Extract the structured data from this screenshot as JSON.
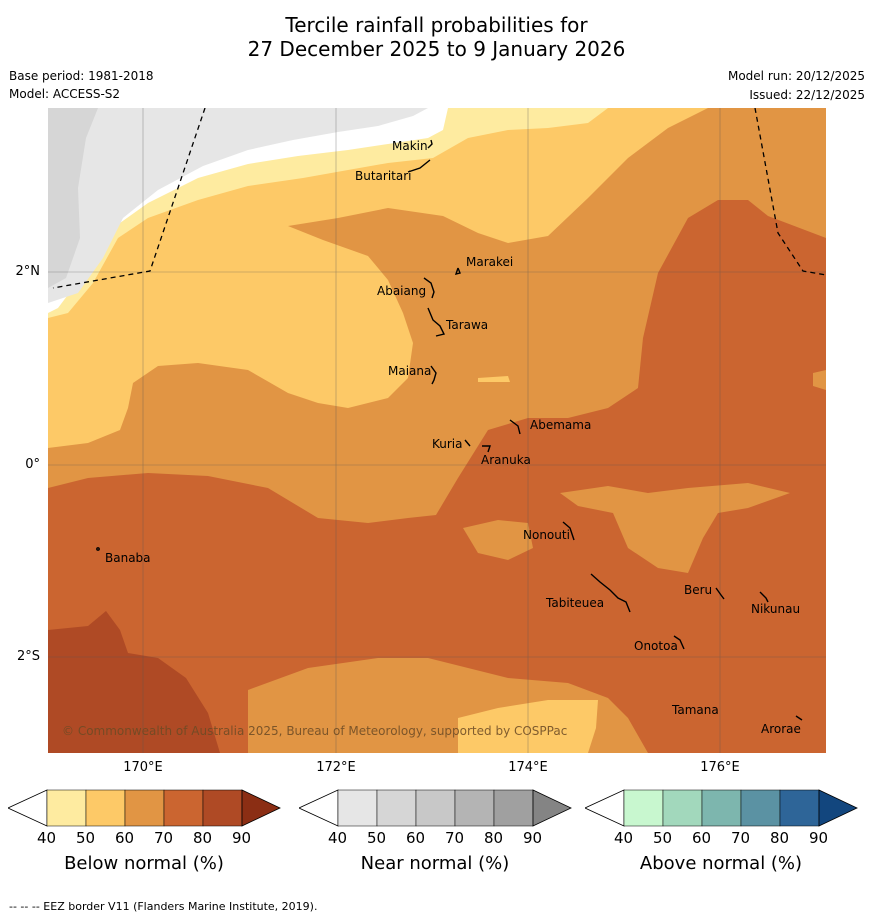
{
  "title": {
    "line1": "Tercile rainfall probabilities for",
    "line2": "27 December 2025 to 9 January 2026"
  },
  "meta": {
    "base_period": "Base period: 1981-2018",
    "model": "Model: ACCESS-S2",
    "model_run": "Model run: 20/12/2025",
    "issued": "Issued: 22/12/2025"
  },
  "map": {
    "lat_labels": [
      "2°N",
      "0°",
      "2°S"
    ],
    "lon_labels": [
      "170°E",
      "172°E",
      "174°E",
      "176°E"
    ],
    "places": [
      "Makin",
      "Butaritari",
      "Marakei",
      "Abaiang",
      "Tarawa",
      "Maiana",
      "Abemama",
      "Kuria",
      "Aranuka",
      "Banaba",
      "Nonouti",
      "Beru",
      "Nikunau",
      "Tabiteuea",
      "Onotoa",
      "Tamana",
      "Arorae"
    ],
    "copyright": "© Commonwealth of Australia 2025, Bureau of Meteorology, supported by COSPPac"
  },
  "legend": {
    "below": {
      "label": "Below normal (%)",
      "ticks": [
        "40",
        "50",
        "60",
        "70",
        "80",
        "90"
      ],
      "colors": [
        "#ffffff",
        "#feeba0",
        "#fdc967",
        "#e19544",
        "#cb6530",
        "#af4a25",
        "#8b2e14"
      ]
    },
    "near": {
      "label": "Near normal (%)",
      "ticks": [
        "40",
        "50",
        "60",
        "70",
        "80",
        "90"
      ],
      "colors": [
        "#ffffff",
        "#e6e6e6",
        "#d6d6d6",
        "#c8c8c8",
        "#b4b4b4",
        "#a0a0a0",
        "#848484"
      ]
    },
    "above": {
      "label": "Above normal (%)",
      "ticks": [
        "40",
        "50",
        "60",
        "70",
        "80",
        "90"
      ],
      "colors": [
        "#ffffff",
        "#c8f7cf",
        "#a2d8bc",
        "#7db6ae",
        "#5b92a3",
        "#2e6598",
        "#12467e"
      ]
    }
  },
  "footnote": "--  --  -- EEZ border V11 (Flanders Marine Institute, 2019)."
}
